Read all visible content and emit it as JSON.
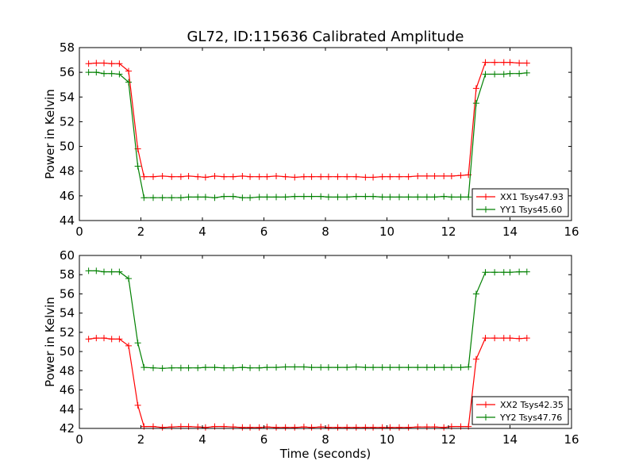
{
  "figure": {
    "title": "GL72, ID:115636 Calibrated Amplitude",
    "xlabel": "Time (seconds)",
    "ylabel": "Power in Kelvin"
  },
  "colors": {
    "red": "#ff0000",
    "green": "#008000"
  },
  "chart_data": [
    {
      "type": "line",
      "title": "GL72, ID:115636 Calibrated Amplitude",
      "xlabel": "",
      "ylabel": "Power in Kelvin",
      "xlim": [
        0,
        16
      ],
      "ylim": [
        44,
        58
      ],
      "xticks": [
        0,
        2,
        4,
        6,
        8,
        10,
        12,
        14,
        16
      ],
      "yticks": [
        44,
        46,
        48,
        50,
        52,
        54,
        56,
        58
      ],
      "grid": false,
      "legend_position": "bottom-right",
      "x": [
        0.3,
        0.55,
        0.8,
        1.05,
        1.3,
        1.6,
        1.9,
        2.1,
        2.4,
        2.7,
        3.0,
        3.3,
        3.55,
        3.85,
        4.1,
        4.4,
        4.7,
        5.0,
        5.3,
        5.55,
        5.85,
        6.1,
        6.4,
        6.7,
        7.0,
        7.3,
        7.55,
        7.85,
        8.1,
        8.4,
        8.7,
        9.0,
        9.3,
        9.55,
        9.85,
        10.1,
        10.4,
        10.7,
        11.0,
        11.3,
        11.55,
        11.85,
        12.1,
        12.4,
        12.65,
        12.9,
        13.2,
        13.5,
        13.8,
        14.0,
        14.3,
        14.55
      ],
      "series": [
        {
          "name": "XX1 Tsys47.93",
          "color": "#ff0000",
          "values": [
            56.7,
            56.75,
            56.75,
            56.7,
            56.7,
            56.1,
            49.8,
            47.55,
            47.55,
            47.6,
            47.55,
            47.55,
            47.6,
            47.55,
            47.5,
            47.6,
            47.55,
            47.55,
            47.6,
            47.55,
            47.55,
            47.55,
            47.6,
            47.55,
            47.5,
            47.55,
            47.55,
            47.55,
            47.55,
            47.55,
            47.55,
            47.55,
            47.5,
            47.5,
            47.55,
            47.55,
            47.55,
            47.55,
            47.6,
            47.6,
            47.6,
            47.6,
            47.6,
            47.65,
            47.7,
            54.7,
            56.8,
            56.8,
            56.8,
            56.8,
            56.75,
            56.75
          ]
        },
        {
          "name": "YY1 Tsys45.60",
          "color": "#008000",
          "values": [
            56.0,
            56.0,
            55.9,
            55.9,
            55.85,
            55.2,
            48.4,
            45.85,
            45.85,
            45.85,
            45.85,
            45.85,
            45.9,
            45.9,
            45.9,
            45.85,
            45.95,
            45.95,
            45.85,
            45.85,
            45.9,
            45.9,
            45.9,
            45.9,
            45.95,
            45.95,
            45.95,
            45.95,
            45.9,
            45.9,
            45.9,
            45.95,
            45.95,
            45.95,
            45.9,
            45.9,
            45.9,
            45.9,
            45.9,
            45.9,
            45.9,
            45.95,
            45.9,
            45.9,
            45.9,
            53.5,
            55.85,
            55.85,
            55.85,
            55.9,
            55.9,
            55.95
          ]
        }
      ]
    },
    {
      "type": "line",
      "title": "",
      "xlabel": "Time (seconds)",
      "ylabel": "Power in Kelvin",
      "xlim": [
        0,
        16
      ],
      "ylim": [
        42,
        60
      ],
      "xticks": [
        0,
        2,
        4,
        6,
        8,
        10,
        12,
        14,
        16
      ],
      "yticks": [
        42,
        44,
        46,
        48,
        50,
        52,
        54,
        56,
        58,
        60
      ],
      "grid": false,
      "legend_position": "bottom-right",
      "x": [
        0.3,
        0.55,
        0.8,
        1.05,
        1.3,
        1.6,
        1.9,
        2.1,
        2.4,
        2.7,
        3.0,
        3.3,
        3.55,
        3.85,
        4.1,
        4.4,
        4.7,
        5.0,
        5.3,
        5.55,
        5.85,
        6.1,
        6.4,
        6.7,
        7.0,
        7.3,
        7.55,
        7.85,
        8.1,
        8.4,
        8.7,
        9.0,
        9.3,
        9.55,
        9.85,
        10.1,
        10.4,
        10.7,
        11.0,
        11.3,
        11.55,
        11.85,
        12.1,
        12.4,
        12.65,
        12.9,
        13.2,
        13.5,
        13.8,
        14.0,
        14.3,
        14.55
      ],
      "series": [
        {
          "name": "XX2 Tsys42.35",
          "color": "#ff0000",
          "values": [
            51.3,
            51.4,
            51.4,
            51.3,
            51.3,
            50.6,
            44.4,
            42.2,
            42.2,
            42.1,
            42.15,
            42.2,
            42.2,
            42.15,
            42.1,
            42.2,
            42.2,
            42.15,
            42.1,
            42.1,
            42.1,
            42.15,
            42.1,
            42.1,
            42.1,
            42.15,
            42.1,
            42.15,
            42.1,
            42.1,
            42.1,
            42.1,
            42.1,
            42.1,
            42.1,
            42.1,
            42.1,
            42.1,
            42.15,
            42.15,
            42.15,
            42.1,
            42.2,
            42.2,
            42.2,
            49.2,
            51.4,
            51.4,
            51.4,
            51.4,
            51.35,
            51.4
          ]
        },
        {
          "name": "YY2 Tsys47.76",
          "color": "#008000",
          "values": [
            58.4,
            58.4,
            58.3,
            58.3,
            58.3,
            57.6,
            50.9,
            48.35,
            48.3,
            48.25,
            48.3,
            48.3,
            48.3,
            48.3,
            48.35,
            48.35,
            48.3,
            48.3,
            48.35,
            48.3,
            48.3,
            48.35,
            48.35,
            48.4,
            48.4,
            48.4,
            48.35,
            48.35,
            48.35,
            48.35,
            48.35,
            48.4,
            48.35,
            48.35,
            48.35,
            48.35,
            48.35,
            48.35,
            48.35,
            48.35,
            48.35,
            48.35,
            48.35,
            48.35,
            48.4,
            56.0,
            58.25,
            58.25,
            58.25,
            58.25,
            58.3,
            58.3
          ]
        }
      ]
    }
  ]
}
